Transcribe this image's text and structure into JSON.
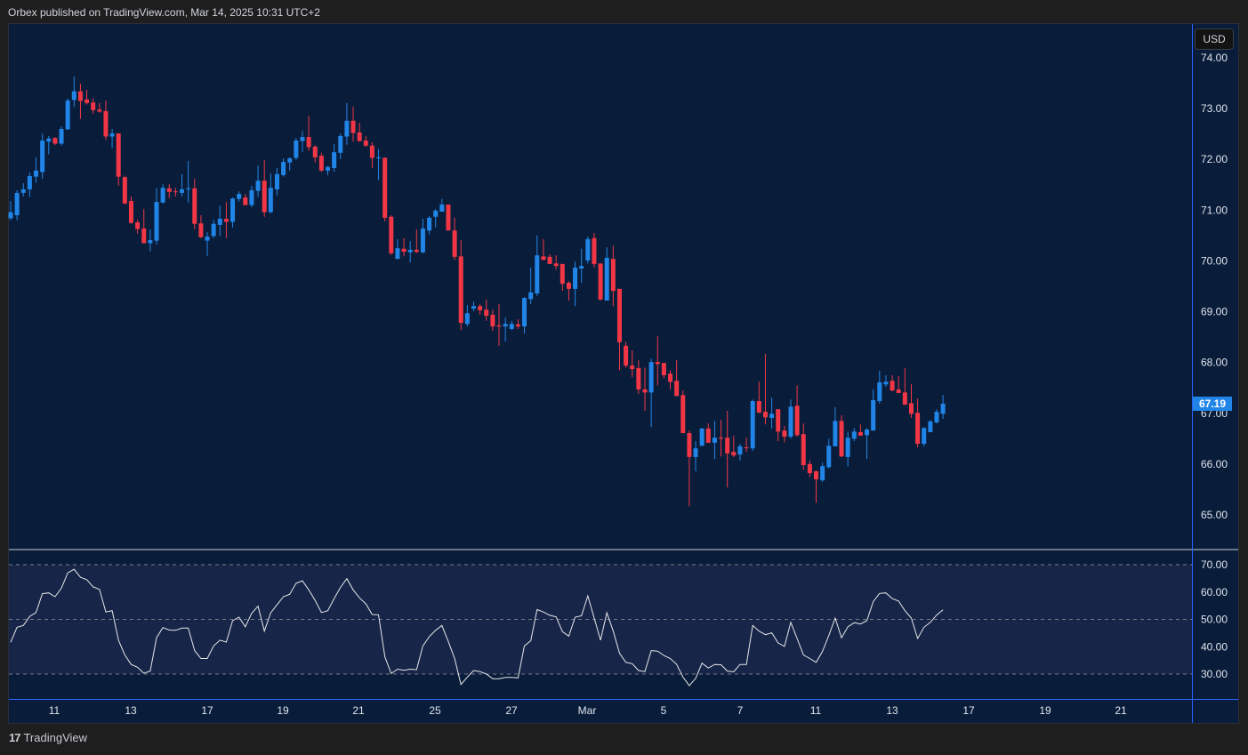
{
  "header": {
    "text": "Orbex published on TradingView.com, Mar 14, 2025 10:31 UTC+2"
  },
  "footer": {
    "logo_text": "TradingView",
    "logo_mark": "17"
  },
  "price_axis": {
    "currency": "USD",
    "current_price": "67.19"
  },
  "colors": {
    "up": "#2185e8",
    "down": "#f23645",
    "background": "#091d3a",
    "rsi_band": "#172549",
    "rsi_line": "#e8e8e8",
    "axis_line": "#2962ff"
  },
  "chart_data": [
    {
      "type": "candlestick",
      "ylim": [
        64.7,
        74.6
      ],
      "yticks": [
        "74.00",
        "73.00",
        "72.00",
        "71.00",
        "70.00",
        "69.00",
        "68.00",
        "67.00",
        "66.00",
        "65.00"
      ],
      "xticks": [
        "11",
        "13",
        "17",
        "19",
        "21",
        "25",
        "27",
        "Mar",
        "5",
        "7",
        "11",
        "13",
        "17",
        "19",
        "21"
      ],
      "grid": false,
      "ohlc": [
        [
          70.84,
          71.18,
          70.8,
          70.96
        ],
        [
          70.9,
          71.39,
          70.8,
          71.34
        ],
        [
          71.34,
          71.53,
          71.27,
          71.41
        ],
        [
          71.41,
          71.74,
          71.26,
          71.67
        ],
        [
          71.66,
          72.04,
          71.54,
          71.78
        ],
        [
          71.75,
          72.51,
          71.62,
          72.37
        ],
        [
          72.35,
          72.46,
          72.1,
          72.41
        ],
        [
          72.42,
          72.44,
          72.28,
          72.31
        ],
        [
          72.31,
          72.65,
          72.27,
          72.6
        ],
        [
          72.59,
          73.2,
          72.59,
          73.16
        ],
        [
          73.17,
          73.63,
          73.03,
          73.34
        ],
        [
          73.34,
          73.49,
          72.8,
          73.15
        ],
        [
          73.18,
          73.37,
          73.08,
          73.11
        ],
        [
          73.12,
          73.2,
          72.9,
          72.97
        ],
        [
          72.98,
          73.11,
          72.92,
          72.94
        ],
        [
          72.95,
          73.16,
          72.38,
          72.45
        ],
        [
          72.45,
          72.6,
          72.22,
          72.51
        ],
        [
          72.51,
          72.51,
          71.48,
          71.66
        ],
        [
          71.65,
          71.68,
          71.12,
          71.13
        ],
        [
          71.18,
          71.27,
          70.73,
          70.75
        ],
        [
          70.76,
          70.81,
          70.54,
          70.63
        ],
        [
          70.64,
          71.02,
          70.35,
          70.35
        ],
        [
          70.35,
          70.62,
          70.19,
          70.41
        ],
        [
          70.4,
          71.44,
          70.33,
          71.16
        ],
        [
          71.15,
          71.51,
          71.13,
          71.44
        ],
        [
          71.43,
          71.51,
          71.24,
          71.36
        ],
        [
          71.37,
          71.44,
          71.27,
          71.36
        ],
        [
          71.34,
          71.71,
          71.27,
          71.41
        ],
        [
          71.41,
          71.97,
          71.15,
          71.43
        ],
        [
          71.43,
          71.62,
          70.63,
          70.73
        ],
        [
          70.74,
          70.9,
          70.45,
          70.47
        ],
        [
          70.4,
          70.57,
          70.1,
          70.48
        ],
        [
          70.49,
          70.81,
          70.45,
          70.73
        ],
        [
          70.71,
          71.09,
          70.49,
          70.83
        ],
        [
          70.83,
          71.16,
          70.45,
          70.77
        ],
        [
          70.77,
          71.25,
          70.66,
          71.23
        ],
        [
          71.22,
          71.37,
          71.17,
          71.32
        ],
        [
          71.25,
          71.32,
          71.1,
          71.1
        ],
        [
          71.1,
          71.48,
          71.06,
          71.39
        ],
        [
          71.38,
          71.88,
          71.26,
          71.58
        ],
        [
          71.58,
          71.99,
          70.87,
          70.96
        ],
        [
          70.96,
          71.72,
          70.94,
          71.44
        ],
        [
          71.41,
          71.83,
          71.29,
          71.71
        ],
        [
          71.69,
          72.02,
          71.66,
          71.95
        ],
        [
          71.94,
          72.04,
          71.78,
          72.02
        ],
        [
          72.03,
          72.42,
          71.99,
          72.37
        ],
        [
          72.36,
          72.56,
          72.15,
          72.44
        ],
        [
          72.44,
          72.86,
          72.17,
          72.24
        ],
        [
          72.25,
          72.28,
          71.94,
          72.04
        ],
        [
          72.07,
          72.13,
          71.75,
          71.78
        ],
        [
          71.78,
          71.87,
          71.69,
          71.85
        ],
        [
          71.83,
          72.3,
          71.76,
          72.14
        ],
        [
          72.13,
          72.51,
          72.01,
          72.46
        ],
        [
          72.45,
          73.11,
          72.29,
          72.76
        ],
        [
          72.76,
          73.04,
          72.35,
          72.52
        ],
        [
          72.53,
          72.72,
          72.35,
          72.36
        ],
        [
          72.37,
          72.46,
          72.25,
          72.27
        ],
        [
          72.27,
          72.34,
          71.83,
          72.03
        ],
        [
          72.03,
          72.2,
          71.59,
          72.04
        ],
        [
          72.03,
          72.04,
          70.78,
          70.85
        ],
        [
          70.87,
          70.9,
          70.12,
          70.15
        ],
        [
          70.04,
          70.43,
          70.04,
          70.25
        ],
        [
          70.24,
          70.45,
          70.09,
          70.18
        ],
        [
          70.17,
          70.39,
          69.97,
          70.22
        ],
        [
          70.22,
          70.62,
          70.15,
          70.18
        ],
        [
          70.17,
          70.83,
          70.15,
          70.64
        ],
        [
          70.6,
          70.88,
          70.52,
          70.85
        ],
        [
          70.87,
          71.02,
          70.66,
          70.99
        ],
        [
          70.97,
          71.22,
          70.97,
          71.11
        ],
        [
          71.11,
          71.11,
          70.6,
          70.6
        ],
        [
          70.6,
          70.85,
          70.02,
          70.08
        ],
        [
          70.09,
          70.41,
          68.64,
          68.78
        ],
        [
          68.76,
          69.13,
          68.71,
          68.97
        ],
        [
          69.06,
          69.2,
          69.01,
          69.11
        ],
        [
          69.11,
          69.15,
          68.94,
          69.03
        ],
        [
          69.04,
          69.24,
          68.82,
          68.92
        ],
        [
          68.94,
          69.04,
          68.62,
          68.71
        ],
        [
          68.73,
          69.15,
          68.33,
          68.71
        ],
        [
          68.71,
          68.89,
          68.41,
          68.76
        ],
        [
          68.66,
          68.82,
          68.64,
          68.76
        ],
        [
          68.75,
          68.85,
          68.66,
          68.71
        ],
        [
          68.71,
          69.29,
          68.57,
          69.27
        ],
        [
          69.25,
          69.87,
          69.15,
          69.38
        ],
        [
          69.36,
          70.5,
          69.31,
          70.11
        ],
        [
          70.09,
          70.43,
          70.02,
          70.02
        ],
        [
          70.08,
          70.13,
          69.94,
          69.94
        ],
        [
          69.95,
          70.11,
          69.83,
          69.9
        ],
        [
          69.94,
          69.94,
          69.41,
          69.55
        ],
        [
          69.57,
          69.6,
          69.22,
          69.45
        ],
        [
          69.45,
          69.99,
          69.11,
          69.87
        ],
        [
          69.85,
          70.24,
          69.57,
          69.9
        ],
        [
          70.01,
          70.48,
          69.95,
          70.43
        ],
        [
          70.45,
          70.55,
          69.87,
          69.94
        ],
        [
          69.95,
          69.95,
          69.22,
          69.24
        ],
        [
          69.22,
          70.27,
          69.22,
          70.06
        ],
        [
          70.04,
          70.3,
          69.11,
          69.41
        ],
        [
          69.45,
          69.45,
          67.85,
          68.4
        ],
        [
          68.33,
          68.41,
          67.9,
          67.94
        ],
        [
          67.94,
          68.24,
          67.71,
          67.87
        ],
        [
          67.89,
          68.05,
          67.38,
          67.47
        ],
        [
          67.47,
          67.9,
          67.05,
          67.41
        ],
        [
          67.41,
          68.08,
          66.73,
          68.01
        ],
        [
          68.01,
          68.52,
          67.55,
          67.97
        ],
        [
          67.99,
          67.99,
          67.69,
          67.75
        ],
        [
          67.78,
          67.85,
          67.47,
          67.62
        ],
        [
          67.64,
          68.05,
          67.34,
          67.34
        ],
        [
          67.36,
          67.45,
          66.61,
          66.61
        ],
        [
          66.61,
          66.66,
          65.17,
          66.14
        ],
        [
          66.14,
          66.45,
          65.86,
          66.31
        ],
        [
          66.36,
          66.71,
          66.36,
          66.7
        ],
        [
          66.7,
          66.8,
          66.42,
          66.42
        ],
        [
          66.42,
          66.85,
          66.1,
          66.52
        ],
        [
          66.52,
          66.87,
          66.15,
          66.5
        ],
        [
          66.52,
          67.05,
          65.54,
          66.21
        ],
        [
          66.24,
          66.56,
          66.14,
          66.17
        ],
        [
          66.19,
          66.4,
          66.07,
          66.35
        ],
        [
          66.33,
          66.52,
          66.24,
          66.32
        ],
        [
          66.31,
          67.27,
          66.26,
          67.24
        ],
        [
          67.24,
          67.62,
          67.01,
          67.01
        ],
        [
          67.03,
          68.17,
          66.78,
          66.92
        ],
        [
          66.91,
          67.31,
          66.7,
          66.99
        ],
        [
          67.08,
          67.08,
          66.45,
          66.64
        ],
        [
          66.66,
          66.75,
          66.43,
          66.54
        ],
        [
          66.54,
          67.27,
          66.5,
          67.13
        ],
        [
          67.15,
          67.55,
          66.54,
          66.57
        ],
        [
          66.59,
          66.8,
          65.89,
          65.98
        ],
        [
          66.0,
          66.07,
          65.75,
          65.82
        ],
        [
          65.86,
          65.87,
          65.24,
          65.7
        ],
        [
          65.68,
          66.03,
          65.65,
          65.96
        ],
        [
          65.94,
          66.5,
          65.91,
          66.36
        ],
        [
          66.35,
          67.12,
          66.35,
          66.85
        ],
        [
          66.85,
          66.96,
          66.14,
          66.15
        ],
        [
          66.14,
          66.64,
          65.96,
          66.52
        ],
        [
          66.5,
          66.71,
          66.45,
          66.64
        ],
        [
          66.63,
          66.78,
          66.56,
          66.56
        ],
        [
          66.57,
          66.71,
          66.1,
          66.68
        ],
        [
          66.66,
          67.47,
          66.66,
          67.26
        ],
        [
          67.24,
          67.84,
          67.19,
          67.61
        ],
        [
          67.57,
          67.75,
          67.52,
          67.62
        ],
        [
          67.64,
          67.75,
          67.43,
          67.45
        ],
        [
          67.47,
          67.73,
          67.4,
          67.4
        ],
        [
          67.41,
          67.89,
          67.17,
          67.17
        ],
        [
          67.2,
          67.57,
          66.91,
          66.99
        ],
        [
          67.01,
          67.29,
          66.33,
          66.4
        ],
        [
          66.4,
          66.73,
          66.35,
          66.71
        ],
        [
          66.63,
          66.87,
          66.63,
          66.84
        ],
        [
          66.82,
          67.08,
          66.8,
          67.03
        ],
        [
          66.99,
          67.36,
          66.89,
          67.19
        ]
      ]
    },
    {
      "type": "line",
      "ylim": [
        20.6,
        75
      ],
      "yticks": [
        "70.00",
        "60.00",
        "50.00",
        "40.00",
        "30.00"
      ],
      "levels": [
        70,
        50,
        30
      ],
      "band": [
        30,
        70
      ],
      "values": [
        41.6,
        47.1,
        47.8,
        51.1,
        52.5,
        59.4,
        59.7,
        58.3,
        61.4,
        67.0,
        68.3,
        65.4,
        64.5,
        61.9,
        61.0,
        52.7,
        53.2,
        42.4,
        37.0,
        33.5,
        32.5,
        30.3,
        31.1,
        43.3,
        47.0,
        46.1,
        46.0,
        46.8,
        46.8,
        38.6,
        35.7,
        35.7,
        40.3,
        42.4,
        41.7,
        49.5,
        50.8,
        47.3,
        52.2,
        54.8,
        45.7,
        52.4,
        55.4,
        58.3,
        59.2,
        63.2,
        64.1,
        60.8,
        57.0,
        52.5,
        53.2,
        57.6,
        61.7,
        64.9,
        60.8,
        57.9,
        55.7,
        51.8,
        51.7,
        36.3,
        30.2,
        31.8,
        31.4,
        31.8,
        31.6,
        40.3,
        43.7,
        46.0,
        47.8,
        41.9,
        35.7,
        26.2,
        28.9,
        31.3,
        30.9,
        30.0,
        28.3,
        28.3,
        28.8,
        28.8,
        28.6,
        40.3,
        42.2,
        53.6,
        52.7,
        51.5,
        50.9,
        45.5,
        43.9,
        50.8,
        51.3,
        58.6,
        50.5,
        42.4,
        52.4,
        45.7,
        37.6,
        34.3,
        33.8,
        31.3,
        30.9,
        38.6,
        38.4,
        36.8,
        35.7,
        33.6,
        28.9,
        25.8,
        28.4,
        34.0,
        32.2,
        33.5,
        33.4,
        31.1,
        30.8,
        33.5,
        33.5,
        47.8,
        45.7,
        44.4,
        45.1,
        41.4,
        40.1,
        48.9,
        43.0,
        37.0,
        35.7,
        34.3,
        38.3,
        44.1,
        50.5,
        43.3,
        47.3,
        48.8,
        48.3,
        49.5,
        56.5,
        59.5,
        59.7,
        57.6,
        56.7,
        53.2,
        50.5,
        43.0,
        47.1,
        48.9,
        51.6,
        53.5
      ]
    }
  ]
}
